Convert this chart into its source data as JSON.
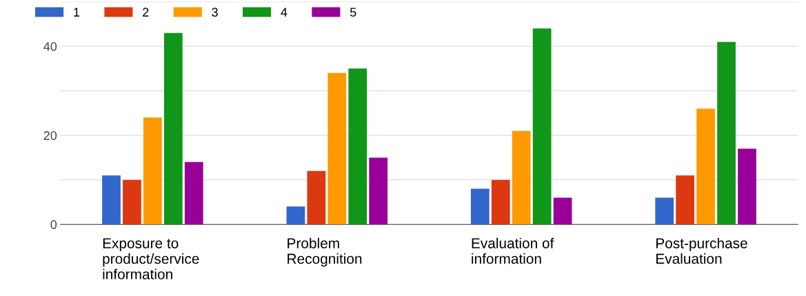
{
  "chart_data": {
    "type": "bar",
    "categories": [
      "Exposure to\nproduct/service\ninformation",
      "Problem\nRecognition",
      "Evaluation of\ninformation",
      "Post-purchase\nEvaluation"
    ],
    "series": [
      {
        "name": "1",
        "color": "#3366cc",
        "values": [
          11,
          4,
          8,
          6
        ]
      },
      {
        "name": "2",
        "color": "#dc3912",
        "values": [
          10,
          12,
          10,
          11
        ]
      },
      {
        "name": "3",
        "color": "#ff9900",
        "values": [
          24,
          34,
          21,
          26
        ]
      },
      {
        "name": "4",
        "color": "#109618",
        "values": [
          43,
          35,
          44,
          41
        ]
      },
      {
        "name": "5",
        "color": "#990099",
        "values": [
          14,
          15,
          6,
          17
        ]
      }
    ],
    "ylim": [
      0,
      50
    ],
    "yticks": [
      0,
      {
        "value": 10,
        "label": null
      },
      20,
      {
        "value": 30,
        "label": null
      },
      40,
      {
        "value": 50,
        "label": null
      }
    ],
    "grid": "y",
    "legend": "top left"
  }
}
